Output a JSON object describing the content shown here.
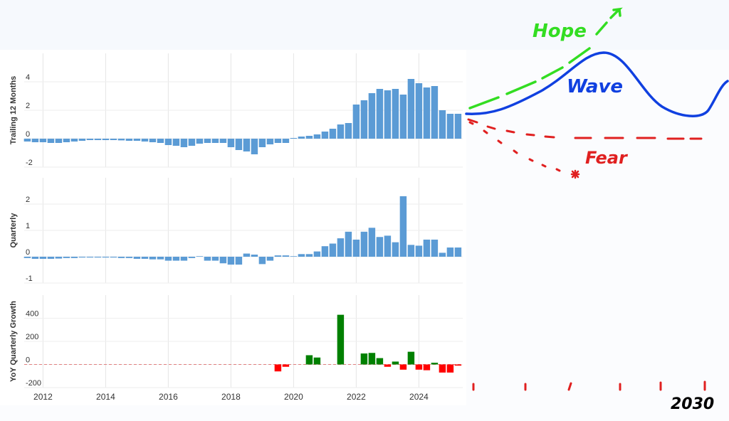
{
  "chart_data": {
    "type": "bar",
    "x": [
      2011.5,
      2011.75,
      2012,
      2012.25,
      2012.5,
      2012.75,
      2013,
      2013.25,
      2013.5,
      2013.75,
      2014,
      2014.25,
      2014.5,
      2014.75,
      2015,
      2015.25,
      2015.5,
      2015.75,
      2016,
      2016.25,
      2016.5,
      2016.75,
      2017,
      2017.25,
      2017.5,
      2017.75,
      2018,
      2018.25,
      2018.5,
      2018.75,
      2019,
      2019.25,
      2019.5,
      2019.75,
      2020,
      2020.25,
      2020.5,
      2020.75,
      2021,
      2021.25,
      2021.5,
      2021.75,
      2022,
      2022.25,
      2022.5,
      2022.75,
      2023,
      2023.25,
      2023.5,
      2023.75,
      2024,
      2024.25,
      2024.5,
      2024.75,
      2025,
      2025.25
    ],
    "xlim": [
      2011.4,
      2025.4
    ],
    "xticks": [
      2012,
      2014,
      2016,
      2018,
      2020,
      2022,
      2024
    ],
    "grid": true,
    "panels": [
      {
        "ylabel": "Trailing 12 Months",
        "color": "#5b9bd5",
        "ylim": [
          -2,
          6
        ],
        "yticks": [
          -2,
          0,
          2,
          4
        ],
        "values": [
          -0.2,
          -0.25,
          -0.25,
          -0.3,
          -0.3,
          -0.25,
          -0.2,
          -0.15,
          -0.1,
          -0.1,
          -0.1,
          -0.1,
          -0.12,
          -0.15,
          -0.15,
          -0.2,
          -0.25,
          -0.3,
          -0.45,
          -0.5,
          -0.6,
          -0.5,
          -0.35,
          -0.3,
          -0.3,
          -0.3,
          -0.6,
          -0.8,
          -0.9,
          -1.1,
          -0.6,
          -0.4,
          -0.3,
          -0.3,
          0.05,
          0.15,
          0.2,
          0.3,
          0.5,
          0.7,
          1.0,
          1.1,
          2.4,
          2.7,
          3.2,
          3.5,
          3.4,
          3.5,
          3.1,
          4.2,
          3.9,
          3.6,
          3.7,
          2.0,
          1.75,
          1.75
        ]
      },
      {
        "ylabel": "Quarterly",
        "color": "#5b9bd5",
        "ylim": [
          -1,
          3
        ],
        "yticks": [
          -1,
          0,
          1,
          2
        ],
        "values": [
          -0.05,
          -0.08,
          -0.08,
          -0.08,
          -0.07,
          -0.05,
          -0.05,
          -0.03,
          -0.03,
          -0.03,
          -0.03,
          -0.03,
          -0.05,
          -0.05,
          -0.08,
          -0.08,
          -0.1,
          -0.1,
          -0.15,
          -0.15,
          -0.15,
          -0.05,
          0.02,
          -0.15,
          -0.15,
          -0.25,
          -0.3,
          -0.3,
          0.12,
          0.08,
          -0.28,
          -0.15,
          0.05,
          0.05,
          0.02,
          0.1,
          0.1,
          0.2,
          0.4,
          0.5,
          0.7,
          0.95,
          0.65,
          0.95,
          1.1,
          0.75,
          0.8,
          0.55,
          2.3,
          0.45,
          0.42,
          0.65,
          0.65,
          0.15,
          0.35,
          0.35
        ]
      },
      {
        "ylabel": "YoY Quarterly Growth",
        "positive_color": "#008000",
        "negative_color": "#ff0000",
        "ylim": [
          -200,
          600
        ],
        "yticks": [
          -200,
          0,
          200,
          400
        ],
        "zeroline": true,
        "values": [
          null,
          null,
          null,
          null,
          null,
          null,
          null,
          null,
          null,
          null,
          null,
          null,
          null,
          null,
          null,
          null,
          null,
          null,
          null,
          null,
          null,
          null,
          null,
          null,
          null,
          null,
          null,
          null,
          null,
          null,
          null,
          null,
          -60,
          -20,
          null,
          null,
          80,
          60,
          null,
          null,
          430,
          null,
          null,
          95,
          100,
          55,
          -20,
          25,
          -45,
          110,
          -45,
          -50,
          15,
          -70,
          -70,
          -10
        ]
      }
    ]
  },
  "annotations": {
    "hope": "Hope",
    "wave": "Wave",
    "fear": "Fear",
    "year": "2030"
  }
}
